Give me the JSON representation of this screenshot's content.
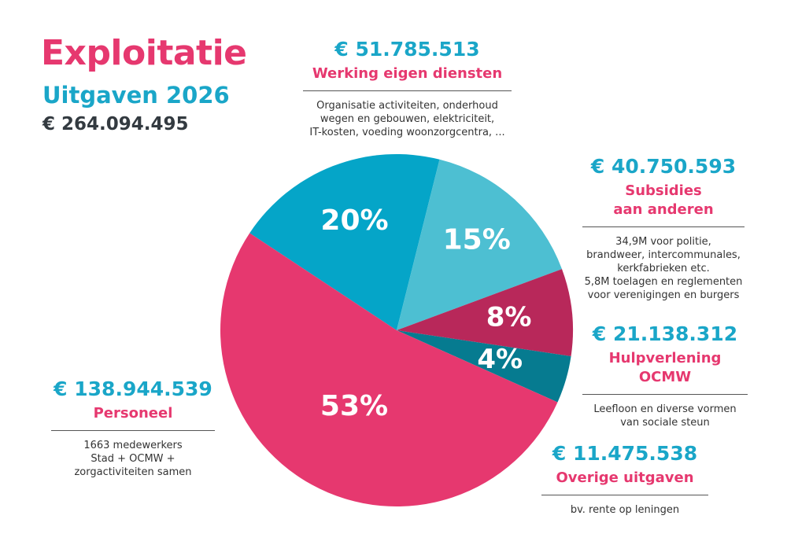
{
  "header": {
    "title": "Exploitatie",
    "subtitle": "Uitgaven 2026",
    "total": "€ 264.094.495"
  },
  "colors": {
    "pink": "#e6386f",
    "blue": "#05a5c8",
    "lightblue": "#4dbfd2",
    "crimson": "#b8285a",
    "teal": "#067b90"
  },
  "chart_data": {
    "type": "pie",
    "title": "Exploitatie",
    "subtitle": "Uitgaven 2026",
    "total": "€ 264.094.495",
    "slices": [
      {
        "name": "Werking eigen diensten",
        "value": 51785513,
        "amount": "€ 51.785.513",
        "pct_label": "20%",
        "color": "#05a5c8",
        "description": "Organisatie activiteiten, onderhoud\nwegen en gebouwen, elektriciteit,\nIT-kosten, voeding woonzorgcentra, ..."
      },
      {
        "name": "Subsidies\naan anderen",
        "value": 40750593,
        "amount": "€ 40.750.593",
        "pct_label": "15%",
        "color": "#4dbfd2",
        "description": "34,9M voor politie,\nbrandweer, intercommunales,\nkerkfabrieken etc.\n5,8M toelagen en reglementen\nvoor verenigingen en burgers"
      },
      {
        "name": "Hulpverlening\nOCMW",
        "value": 21138312,
        "amount": "€ 21.138.312",
        "pct_label": "8%",
        "color": "#b8285a",
        "description": "Leefloon en diverse vormen\nvan sociale steun"
      },
      {
        "name": "Overige uitgaven",
        "value": 11475538,
        "amount": "€ 11.475.538",
        "pct_label": "4%",
        "color": "#067b90",
        "description": "bv. rente op leningen"
      },
      {
        "name": "Personeel",
        "value": 138944539,
        "amount": "€ 138.944.539",
        "pct_label": "53%",
        "color": "#e6386f",
        "description": "1663 medewerkers\nStad + OCMW +\nzorgactiviteiten samen"
      }
    ]
  }
}
